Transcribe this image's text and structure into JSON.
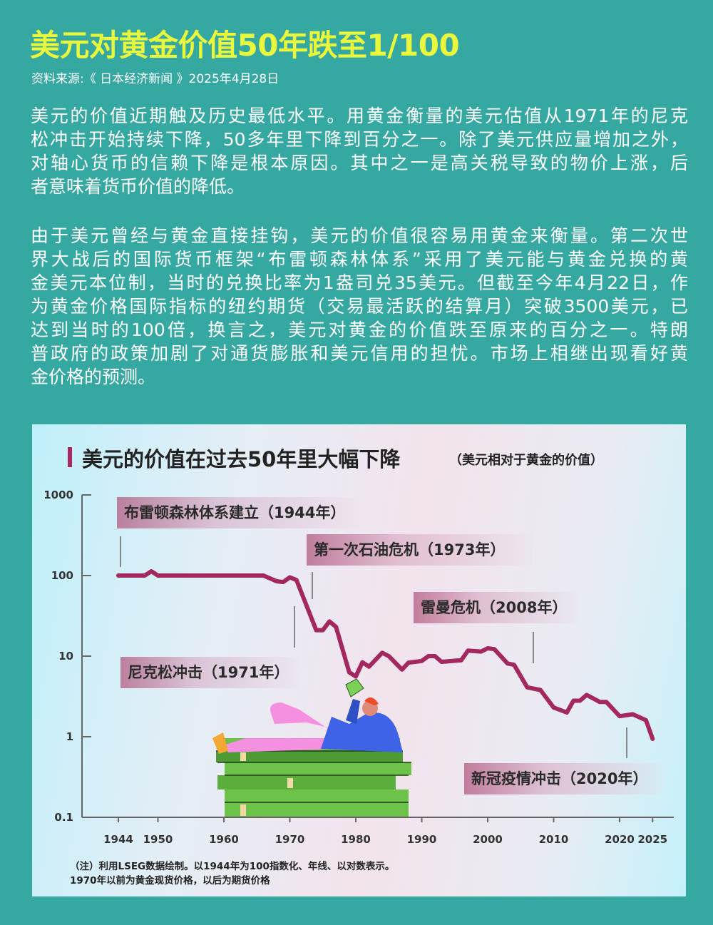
{
  "header": {
    "title": "美元对黄金价值50年跌至1/100",
    "source": "资料来源:《 日本经济新闻 》2025年4月28日"
  },
  "body": {
    "paragraphs": [
      [
        "美元的价值近期触及历史最低水平。用黄金衡量的美元估值从1971年的尼克",
        "松冲击开始持续下降，50多年里下降到百分之一。除了美元供应量增加之外，",
        "对轴心货币的信赖下降是根本原因。其中之一是高关税导致的物价上涨，后",
        "者意味着货币价值的降低。"
      ],
      [
        "由于美元曾经与黄金直接挂钩，美元的价值很容易用黄金来衡量。第二次世",
        "界大战后的国际货币框架“布雷顿森林体系”采用了美元能与黄金兑换的黄",
        "金美元本位制，当时的兑换比率为1盎司兑35美元。但截至今年4月22日，作",
        "为黄金价格国际指标的纽约期货（交易最活跃的结算月）突破3500美元，已",
        "达到当时的100倍，换言之，美元对黄金的价值跌至原来的百分之一。特朗",
        "普政府的政策加剧了对通货膨胀和美元信用的担忧。市场上相继出现看好黄",
        "金价格的预测。"
      ]
    ]
  },
  "colors": {
    "background": "#36a8a2",
    "title": "#e9f83c",
    "line": "#a3285e",
    "accent_bar": "#a8285f"
  },
  "chart_data": {
    "type": "line",
    "title": "美元的价值在过去50年里大幅下降",
    "subtitle": "（美元相对于黄金的价值）",
    "y_scale": "log",
    "ylim": [
      0.1,
      1000
    ],
    "xlim": [
      1944,
      2025
    ],
    "y_ticks": [
      "1000",
      "100",
      "10",
      "1",
      "0.1"
    ],
    "x_ticks": [
      "1944",
      "1950",
      "1960",
      "1970",
      "1980",
      "1990",
      "2000",
      "2010",
      "2020",
      "2025"
    ],
    "grid": false,
    "x": [
      1944,
      1948,
      1949,
      1950,
      1966,
      1968,
      1969,
      1970,
      1971,
      1974,
      1975,
      1976,
      1977,
      1979,
      1980,
      1981,
      1982,
      1984,
      1985,
      1987,
      1988,
      1990,
      1991,
      1992,
      1993,
      1996,
      1997,
      1999,
      2000,
      2001,
      2003,
      2004,
      2006,
      2008,
      2010,
      2012,
      2013,
      2014,
      2015,
      2017,
      2018,
      2020,
      2022,
      2024,
      2025
    ],
    "values": [
      100,
      100,
      113,
      100,
      100,
      85,
      83,
      95,
      88,
      21,
      21,
      27,
      23,
      6.3,
      5.6,
      8.4,
      7.4,
      11,
      10,
      6.8,
      8.3,
      8.7,
      10,
      10,
      8.5,
      8.9,
      11.7,
      11.4,
      12.5,
      12.2,
      8.1,
      7.8,
      4.1,
      3.8,
      2.3,
      2.0,
      2.8,
      2.8,
      3.3,
      2.7,
      2.7,
      1.8,
      1.9,
      1.6,
      0.94
    ],
    "annotations": [
      {
        "label": "布雷顿森林体系建立（1944年）",
        "year": 1944
      },
      {
        "label": "第一次石油危机（1973年）",
        "year": 1973
      },
      {
        "label": "尼克松冲击（1971年）",
        "year": 1971
      },
      {
        "label": "雷曼危机（2008年）",
        "year": 2008
      },
      {
        "label": "新冠疫情冲击（2020年）",
        "year": 2020
      }
    ],
    "notes": [
      "（注）利用LSEG数据绘制。以1944年为100指数化、年线、以对数表示。",
      "1970年以前为黄金现货价格，以后为期货价格"
    ]
  }
}
